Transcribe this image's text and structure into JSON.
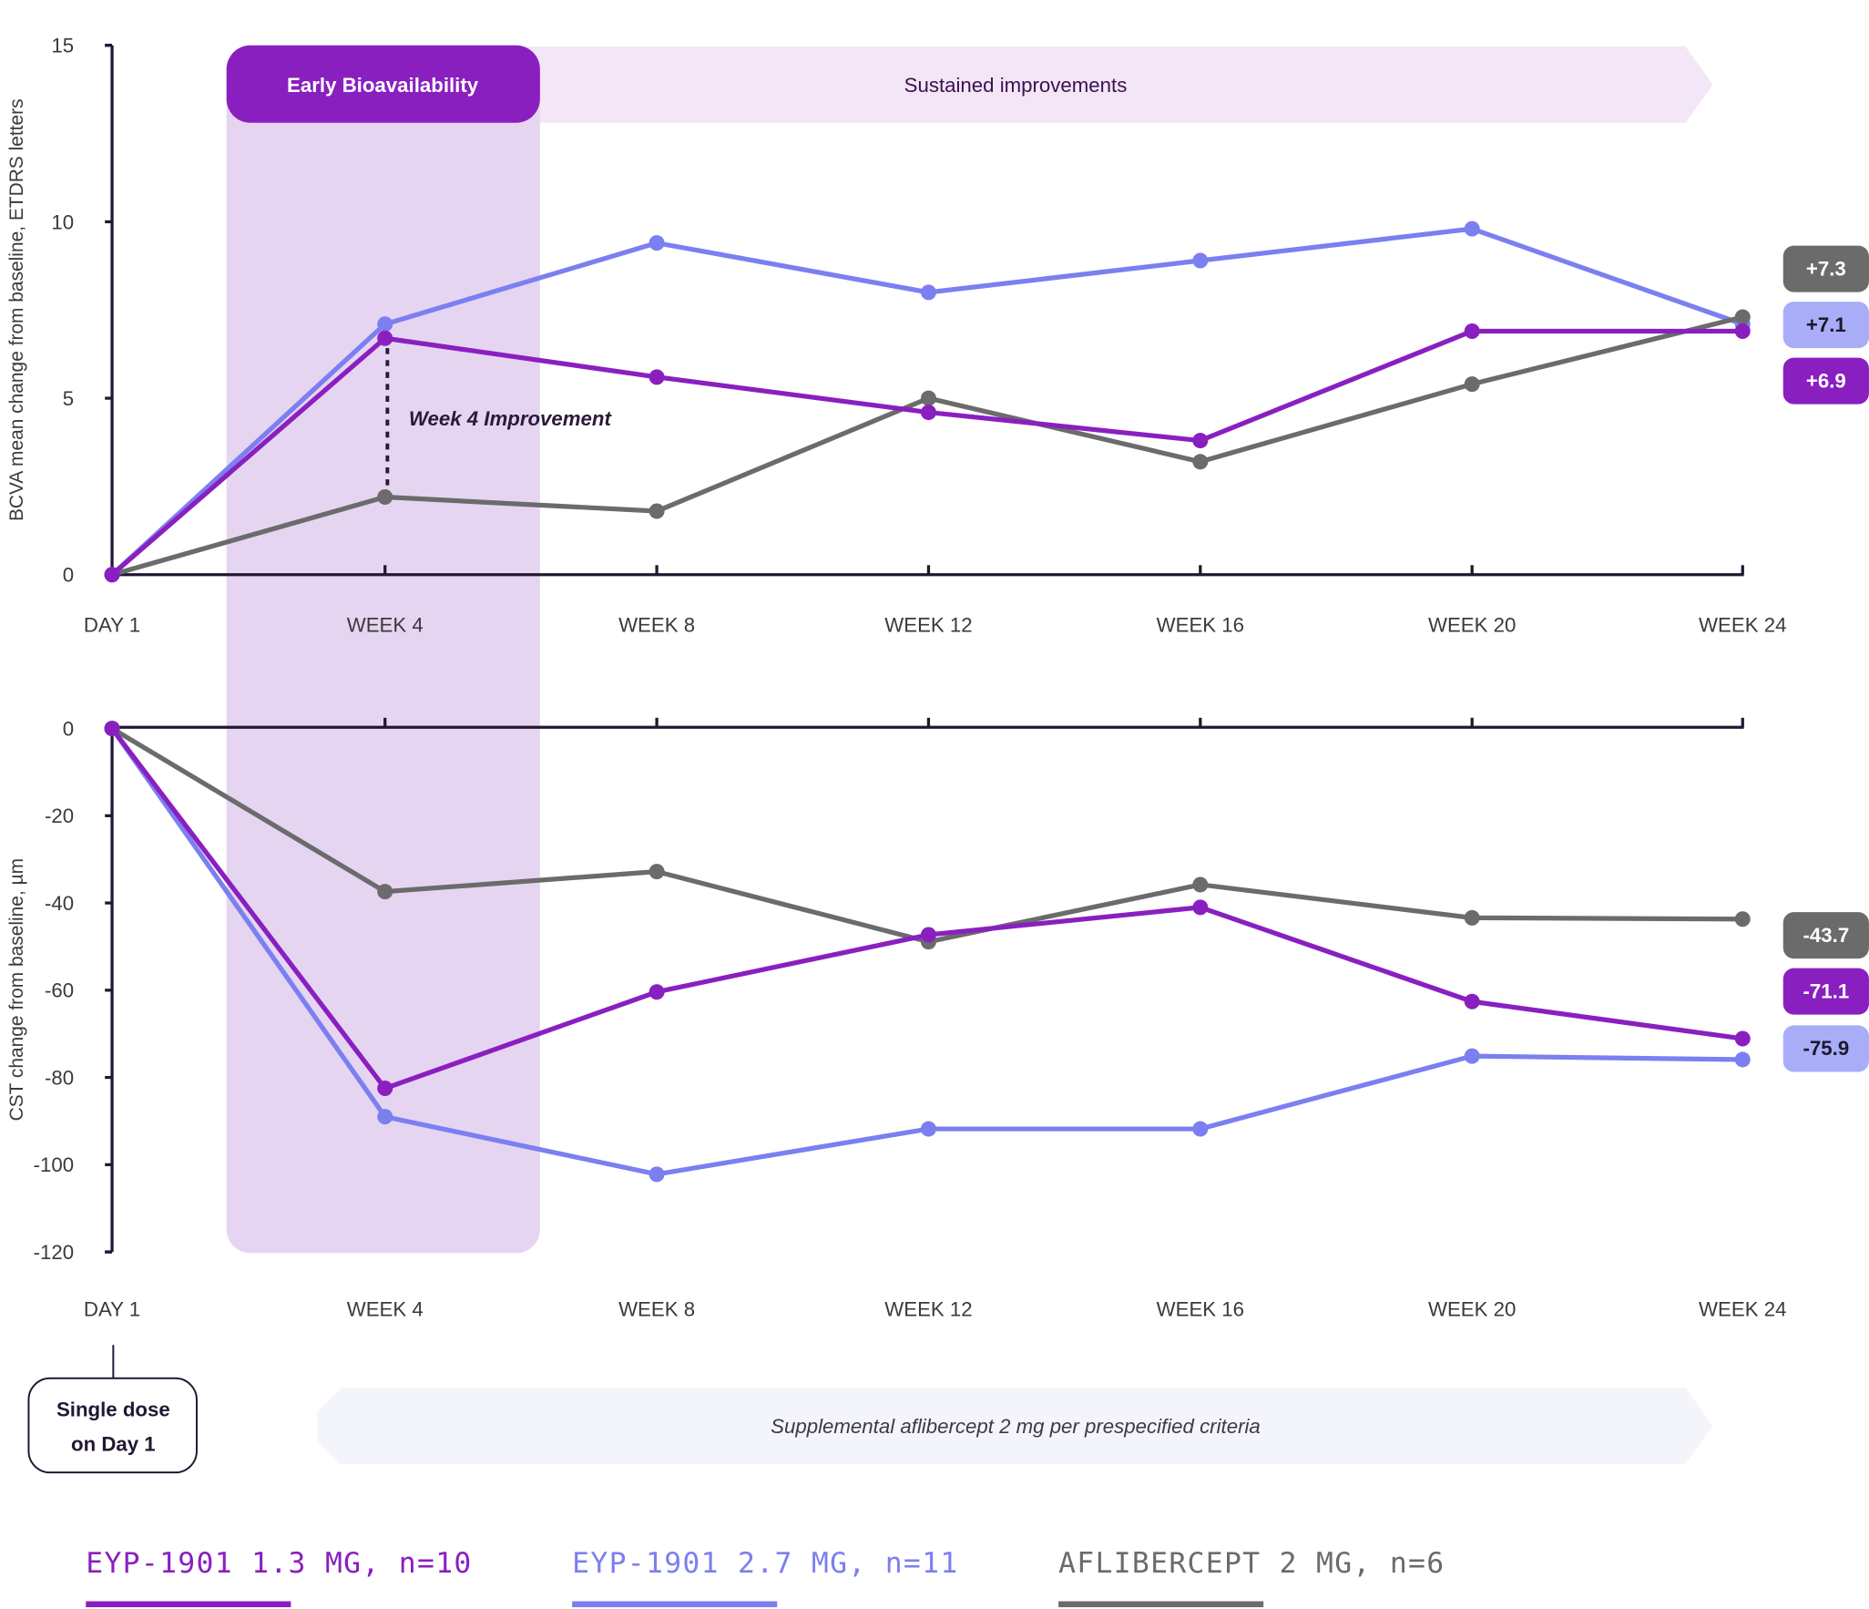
{
  "colors": {
    "eyp13": "#8a1fc0",
    "eyp27": "#7b7ff0",
    "aflib": "#6b6b6b",
    "eyp27_badge": "#a9acf7",
    "band": "#e6d5f1",
    "sustained": "#f3e6f7",
    "supplemental": "#f4f4fb"
  },
  "annotations": {
    "early": "Early Bioavailability",
    "sustained": "Sustained improvements",
    "week4": "Week 4 Improvement",
    "single_dose_line1": "Single dose",
    "single_dose_line2": "on Day 1",
    "supplemental": "Supplemental aflibercept 2 mg per prespecified criteria"
  },
  "legend": [
    {
      "label": "EYP-1901 1.3 MG, n=10",
      "color": "#8a1fc0"
    },
    {
      "label": "EYP-1901 2.7 MG, n=11",
      "color": "#7b7ff0"
    },
    {
      "label": "AFLIBERCEPT 2 MG, n=6",
      "color": "#6b6b6b"
    }
  ],
  "chart_data": [
    {
      "type": "line",
      "ylabel": "BCVA mean change from baseline, ETDRS letters",
      "categories": [
        "DAY 1",
        "WEEK 4",
        "WEEK 8",
        "WEEK 12",
        "WEEK 16",
        "WEEK 20",
        "WEEK 24"
      ],
      "ylim": [
        0,
        15
      ],
      "yticks": [
        "0",
        "5",
        "10",
        "15"
      ],
      "grid": false,
      "series": [
        {
          "name": "EYP-1901 1.3 MG, n=10",
          "key": "eyp13",
          "values": [
            0,
            6.7,
            5.6,
            4.6,
            3.8,
            6.9,
            6.9
          ],
          "end_label": "+6.9"
        },
        {
          "name": "EYP-1901 2.7 MG, n=11",
          "key": "eyp27",
          "values": [
            0,
            7.1,
            9.4,
            8.0,
            8.9,
            9.8,
            7.1
          ],
          "end_label": "+7.1"
        },
        {
          "name": "AFLIBERCEPT 2 MG, n=6",
          "key": "aflib",
          "values": [
            0,
            2.2,
            1.8,
            5.0,
            3.2,
            5.4,
            7.3
          ],
          "end_label": "+7.3"
        }
      ]
    },
    {
      "type": "line",
      "ylabel": "CST change from baseline, µm",
      "categories": [
        "DAY 1",
        "WEEK 4",
        "WEEK 8",
        "WEEK 12",
        "WEEK 16",
        "WEEK 20",
        "WEEK 24"
      ],
      "ylim": [
        -120,
        0
      ],
      "yticks": [
        "0",
        "-20",
        "-40",
        "-60",
        "-80",
        "-100",
        "-120"
      ],
      "grid": false,
      "series": [
        {
          "name": "EYP-1901 1.3 MG, n=10",
          "key": "eyp13",
          "values": [
            0,
            -82.5,
            -60.4,
            -47.3,
            -41.0,
            -62.6,
            -71.1
          ],
          "end_label": "-71.1"
        },
        {
          "name": "EYP-1901 2.7 MG, n=11",
          "key": "eyp27",
          "values": [
            0,
            -89.0,
            -102.2,
            -91.8,
            -91.8,
            -75.1,
            -75.9
          ],
          "end_label": "-75.9"
        },
        {
          "name": "AFLIBERCEPT 2 MG, n=6",
          "key": "aflib",
          "values": [
            0,
            -37.4,
            -32.8,
            -48.9,
            -35.8,
            -43.4,
            -43.7
          ],
          "end_label": "-43.7"
        }
      ]
    }
  ]
}
